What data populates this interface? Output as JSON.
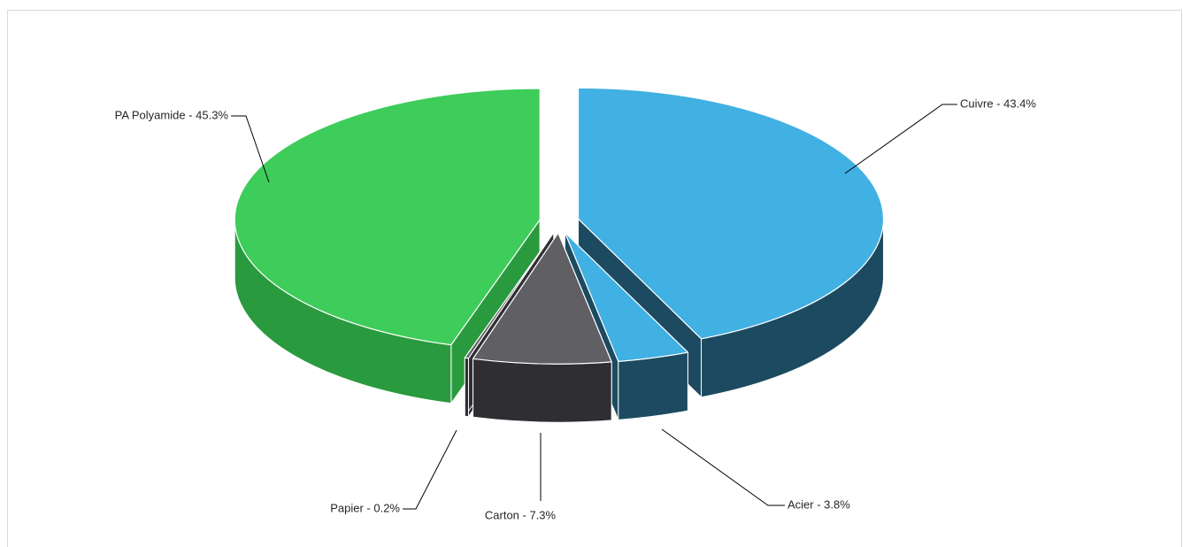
{
  "chart_data": {
    "type": "pie",
    "style": "3d-exploded",
    "title": "",
    "slices": [
      {
        "name": "Cuivre",
        "value": 43.4,
        "label": "Cuivre - 43.4%",
        "color": "#41b0e2",
        "shade": "#1c4a60"
      },
      {
        "name": "Acier",
        "value": 3.8,
        "label": "Acier - 3.8%",
        "color": "#41b0e2",
        "shade": "#1c4a60"
      },
      {
        "name": "Carton",
        "value": 7.3,
        "label": "Carton - 7.3%",
        "color": "#5f5f64",
        "shade": "#2f2f33"
      },
      {
        "name": "Papier",
        "value": 0.2,
        "label": "Papier - 0.2%",
        "color": "#5f5f64",
        "shade": "#2f2f33"
      },
      {
        "name": "PA Polyamide",
        "value": 45.3,
        "label": "PA Polyamide - 45.3%",
        "color": "#3ecc5a",
        "shade": "#2a9a3e"
      }
    ],
    "legend": "none",
    "data_labels": "outside-with-leader-lines"
  }
}
